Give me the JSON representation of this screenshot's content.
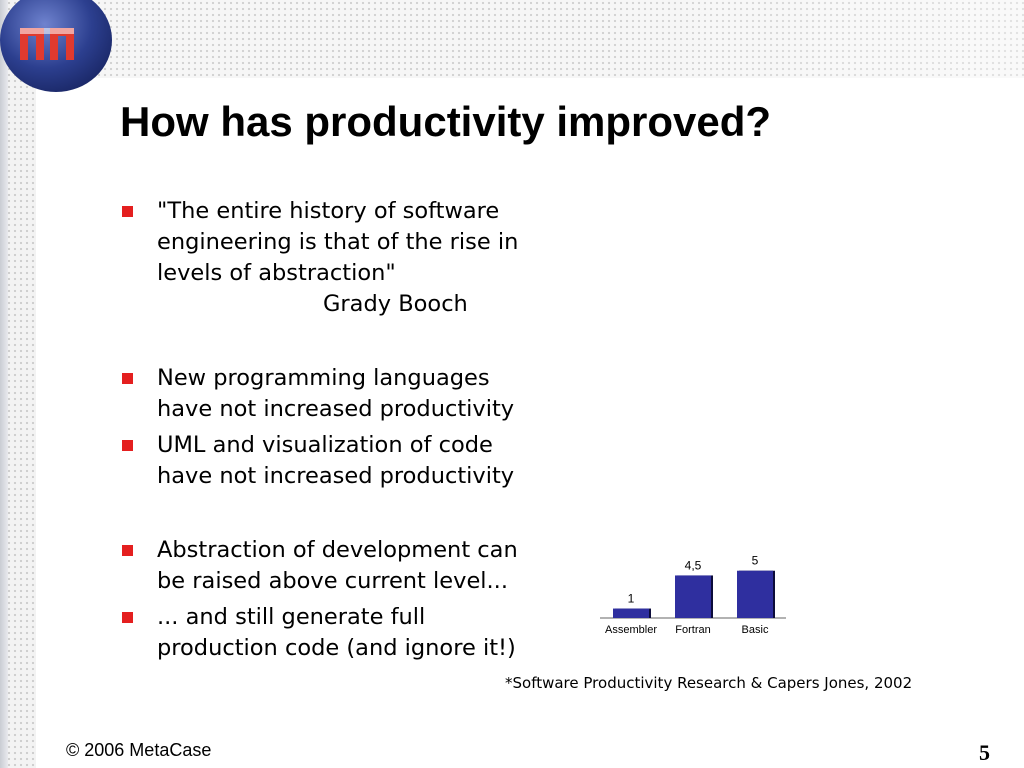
{
  "slide": {
    "title": "How has productivity improved?",
    "bullets": [
      {
        "text": "\"The entire history of software\nengineering is that of the rise in\nlevels of abstraction\""
      },
      {
        "text": "New programming languages\nhave not increased productivity"
      },
      {
        "text": "UML and visualization of code\nhave not increased productivity"
      },
      {
        "text": "Abstraction of development can\nbe raised above current level..."
      },
      {
        "text": "... and still generate full\nproduction code (and ignore it!)"
      }
    ],
    "quote_attribution": "Grady Booch",
    "source_note": "*Software Productivity Research & Capers Jones, 2002",
    "footer": "© 2006 MetaCase",
    "page_number": "5",
    "colors": {
      "bullet": "#e41f1f",
      "bar": "#2f2f9f",
      "bar_shadow": "#0c0c3a",
      "logo_blue": "#2c3f8f",
      "logo_red": "#e03a2f"
    },
    "logo_icon": "metacase-logo-icon",
    "bullet_icon": "red-square-bullet-icon"
  },
  "chart_data": {
    "type": "bar",
    "categories": [
      "Assembler",
      "Fortran",
      "Basic"
    ],
    "values": [
      1,
      4.5,
      5
    ],
    "value_labels": [
      "1",
      "4,5",
      "5"
    ],
    "ylim": [
      0,
      5.5
    ],
    "grid": false,
    "legend": "none"
  }
}
